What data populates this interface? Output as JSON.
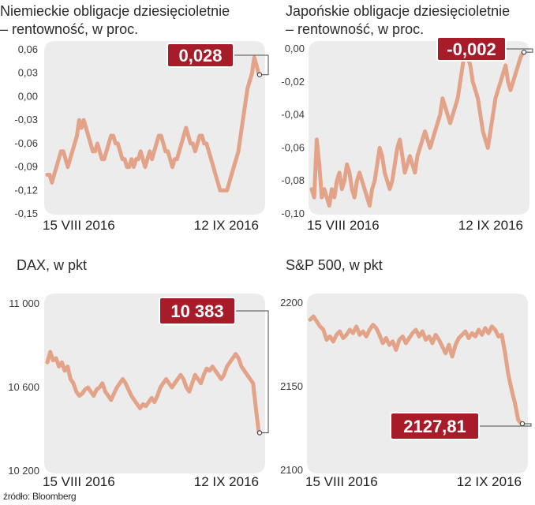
{
  "source": "źródło: Bloomberg",
  "chart_data": [
    {
      "type": "line",
      "title": "Niemieckie obligacje dziesięcioletnie\n– rentowność, w proc.",
      "title_lines": [
        "Niemieckie obligacje dziesięcioletnie",
        "– rentowność, w proc."
      ],
      "y_ticks": [
        0.06,
        0.03,
        0.0,
        -0.03,
        -0.06,
        -0.09,
        -0.12,
        -0.15
      ],
      "y_tick_labels": [
        "0,06",
        "0,03",
        "0,00",
        "-0,03",
        "-0,06",
        "-0,09",
        "-0,12",
        "-0,15"
      ],
      "ylim": [
        -0.15,
        0.06
      ],
      "x_labels": [
        "15 VIII 2016",
        "12 IX 2016"
      ],
      "callout": "0,028",
      "last_value": 0.028,
      "grid": false,
      "series": [
        {
          "values": [
            -0.1,
            -0.1,
            -0.11,
            -0.1,
            -0.09,
            -0.08,
            -0.07,
            -0.07,
            -0.08,
            -0.09,
            -0.08,
            -0.07,
            -0.06,
            -0.05,
            -0.03,
            -0.04,
            -0.03,
            -0.04,
            -0.05,
            -0.06,
            -0.07,
            -0.07,
            -0.06,
            -0.07,
            -0.08,
            -0.08,
            -0.07,
            -0.06,
            -0.05,
            -0.05,
            -0.06,
            -0.06,
            -0.07,
            -0.08,
            -0.08,
            -0.09,
            -0.09,
            -0.08,
            -0.09,
            -0.08,
            -0.08,
            -0.07,
            -0.08,
            -0.09,
            -0.08,
            -0.07,
            -0.08,
            -0.07,
            -0.06,
            -0.05,
            -0.05,
            -0.06,
            -0.07,
            -0.07,
            -0.08,
            -0.09,
            -0.08,
            -0.08,
            -0.07,
            -0.06,
            -0.05,
            -0.04,
            -0.05,
            -0.06,
            -0.06,
            -0.07,
            -0.06,
            -0.05,
            -0.05,
            -0.06,
            -0.06,
            -0.07,
            -0.08,
            -0.09,
            -0.1,
            -0.11,
            -0.12,
            -0.12,
            -0.12,
            -0.12,
            -0.11,
            -0.1,
            -0.09,
            -0.08,
            -0.07,
            -0.05,
            -0.03,
            -0.01,
            0.01,
            0.02,
            0.03,
            0.05,
            0.04,
            0.028
          ]
        }
      ]
    },
    {
      "type": "line",
      "title": "Japońskie obligacje dziesięcioletnie\n– rentowność, w proc.",
      "title_lines": [
        "Japońskie obligacje dziesięcioletnie",
        "– rentowność, w proc."
      ],
      "y_ticks": [
        0.0,
        -0.02,
        -0.04,
        -0.06,
        -0.08,
        -0.1
      ],
      "y_tick_labels": [
        "0,00",
        "-0,02",
        "-0,04",
        "-0,06",
        "-0,08",
        "-0,10"
      ],
      "ylim": [
        -0.1,
        0.0
      ],
      "x_labels": [
        "15 VIII 2016",
        "12 IX 2016"
      ],
      "callout": "-0,002",
      "last_value": -0.002,
      "grid": false,
      "series": [
        {
          "values": [
            -0.085,
            -0.09,
            -0.055,
            -0.07,
            -0.09,
            -0.085,
            -0.09,
            -0.095,
            -0.085,
            -0.09,
            -0.08,
            -0.075,
            -0.085,
            -0.08,
            -0.07,
            -0.075,
            -0.085,
            -0.09,
            -0.08,
            -0.075,
            -0.08,
            -0.085,
            -0.09,
            -0.095,
            -0.085,
            -0.08,
            -0.07,
            -0.06,
            -0.065,
            -0.075,
            -0.08,
            -0.085,
            -0.08,
            -0.07,
            -0.06,
            -0.055,
            -0.065,
            -0.075,
            -0.07,
            -0.065,
            -0.07,
            -0.075,
            -0.065,
            -0.06,
            -0.055,
            -0.05,
            -0.055,
            -0.06,
            -0.055,
            -0.05,
            -0.045,
            -0.04,
            -0.03,
            -0.035,
            -0.04,
            -0.045,
            -0.04,
            -0.035,
            -0.03,
            -0.02,
            -0.01,
            0.0,
            -0.005,
            -0.01,
            -0.02,
            -0.025,
            -0.03,
            -0.04,
            -0.05,
            -0.055,
            -0.06,
            -0.05,
            -0.04,
            -0.03,
            -0.025,
            -0.02,
            -0.015,
            -0.01,
            -0.02,
            -0.025,
            -0.02,
            -0.015,
            -0.01,
            -0.005,
            -0.002
          ]
        }
      ]
    },
    {
      "type": "line",
      "title": "DAX, w pkt",
      "title_lines": [
        "DAX, w pkt"
      ],
      "y_ticks": [
        11000,
        10600,
        10200
      ],
      "y_tick_labels": [
        "11 000",
        "10 600",
        "10 200"
      ],
      "ylim": [
        10200,
        11000
      ],
      "x_labels": [
        "15 VIII 2016",
        "12 IX 2016"
      ],
      "callout": "10 383",
      "last_value": 10383,
      "grid": false,
      "series": [
        {
          "values": [
            10720,
            10770,
            10730,
            10740,
            10700,
            10720,
            10680,
            10700,
            10640,
            10620,
            10580,
            10560,
            10570,
            10590,
            10600,
            10580,
            10560,
            10590,
            10600,
            10620,
            10580,
            10560,
            10540,
            10570,
            10600,
            10620,
            10640,
            10620,
            10590,
            10560,
            10540,
            10520,
            10500,
            10520,
            10510,
            10530,
            10550,
            10530,
            10560,
            10600,
            10620,
            10640,
            10620,
            10600,
            10620,
            10640,
            10660,
            10640,
            10600,
            10580,
            10620,
            10660,
            10640,
            10620,
            10660,
            10690,
            10680,
            10700,
            10680,
            10660,
            10640,
            10660,
            10700,
            10720,
            10740,
            10760,
            10740,
            10700,
            10680,
            10660,
            10640,
            10620,
            10500,
            10383
          ]
        }
      ]
    },
    {
      "type": "line",
      "title": "S&P 500, w pkt",
      "title_lines": [
        "S&P 500, w pkt"
      ],
      "y_ticks": [
        2200,
        2150,
        2100
      ],
      "y_tick_labels": [
        "2200",
        "2150",
        "2100"
      ],
      "ylim": [
        2100,
        2200
      ],
      "x_labels": [
        "15 VIII 2016",
        "12 IX 2016"
      ],
      "callout": "2127,81",
      "last_value": 2127.81,
      "grid": false,
      "series": [
        {
          "values": [
            2190,
            2192,
            2189,
            2186,
            2184,
            2178,
            2180,
            2177,
            2181,
            2183,
            2179,
            2181,
            2184,
            2182,
            2186,
            2181,
            2183,
            2180,
            2184,
            2187,
            2185,
            2181,
            2176,
            2179,
            2175,
            2177,
            2172,
            2178,
            2180,
            2176,
            2179,
            2182,
            2184,
            2180,
            2183,
            2178,
            2180,
            2176,
            2181,
            2178,
            2174,
            2170,
            2175,
            2168,
            2175,
            2179,
            2181,
            2183,
            2179,
            2182,
            2180,
            2184,
            2181,
            2185,
            2182,
            2186,
            2184,
            2180,
            2181,
            2170,
            2157,
            2148,
            2140,
            2130,
            2127.81
          ]
        }
      ]
    }
  ]
}
